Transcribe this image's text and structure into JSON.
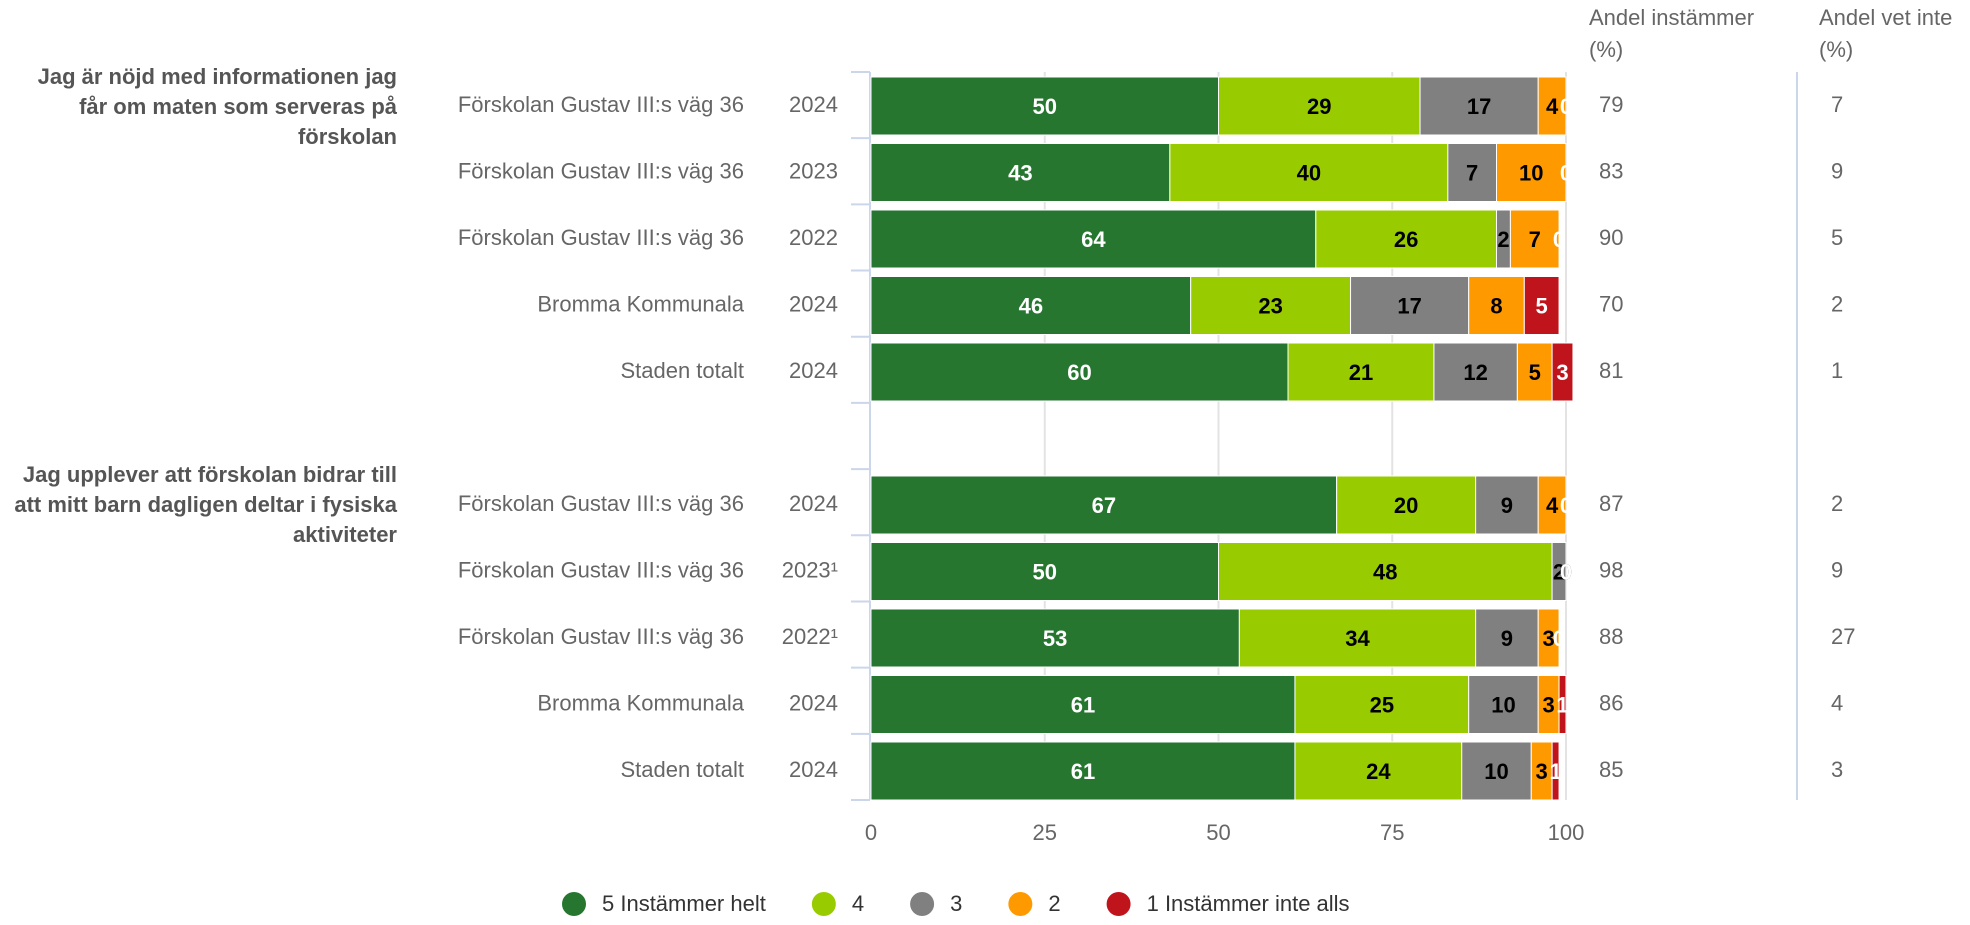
{
  "chart_data": {
    "type": "bar",
    "orientation": "horizontal",
    "stacked": true,
    "xlim": [
      0,
      100
    ],
    "xticks": [
      0,
      25,
      50,
      75,
      100
    ],
    "grid": true,
    "legend": "bottom",
    "columns": [
      "Andel instämmer (%)",
      "Andel vet inte (%)"
    ],
    "series": [
      {
        "name": "5 Instämmer helt",
        "color": "#267630",
        "label_color": "#ffffff"
      },
      {
        "name": "4",
        "color": "#99cc00",
        "label_color": "#000000"
      },
      {
        "name": "3",
        "color": "#808080",
        "label_color": "#000000"
      },
      {
        "name": "2",
        "color": "#ff9900",
        "label_color": "#000000"
      },
      {
        "name": "1 Instämmer inte alls",
        "color": "#c0141c",
        "label_color": "#ffffff"
      }
    ],
    "panels": [
      {
        "title": "Jag är nöjd med informationen jag får om maten som serveras på förskolan",
        "categories": [
          "Förskolan Gustav III:s väg 36",
          "Förskolan Gustav III:s väg 36",
          "Förskolan Gustav III:s väg 36",
          "Bromma Kommunala",
          "Staden totalt"
        ],
        "years": [
          "2024",
          "2023",
          "2022",
          "2024",
          "2024"
        ],
        "values": [
          [
            50,
            29,
            17,
            4,
            0
          ],
          [
            43,
            40,
            7,
            10,
            0
          ],
          [
            64,
            26,
            2,
            7,
            0
          ],
          [
            46,
            23,
            17,
            8,
            5
          ],
          [
            60,
            21,
            12,
            5,
            3
          ]
        ],
        "agree": [
          79,
          83,
          90,
          70,
          81
        ],
        "dont_know": [
          7,
          9,
          5,
          2,
          1
        ]
      },
      {
        "title": "Jag upplever att förskolan bidrar till att mitt barn dagligen deltar i fysiska aktiviteter",
        "categories": [
          "Förskolan Gustav III:s väg 36",
          "Förskolan Gustav III:s väg 36",
          "Förskolan Gustav III:s väg 36",
          "Bromma Kommunala",
          "Staden totalt"
        ],
        "years": [
          "2024",
          "2023¹",
          "2022¹",
          "2024",
          "2024"
        ],
        "values": [
          [
            67,
            20,
            9,
            4,
            0
          ],
          [
            50,
            48,
            2,
            0,
            0
          ],
          [
            53,
            34,
            9,
            3,
            0
          ],
          [
            61,
            25,
            10,
            3,
            1
          ],
          [
            61,
            24,
            10,
            3,
            1
          ]
        ],
        "agree": [
          87,
          98,
          88,
          86,
          85
        ],
        "dont_know": [
          2,
          9,
          27,
          4,
          3
        ]
      }
    ]
  }
}
